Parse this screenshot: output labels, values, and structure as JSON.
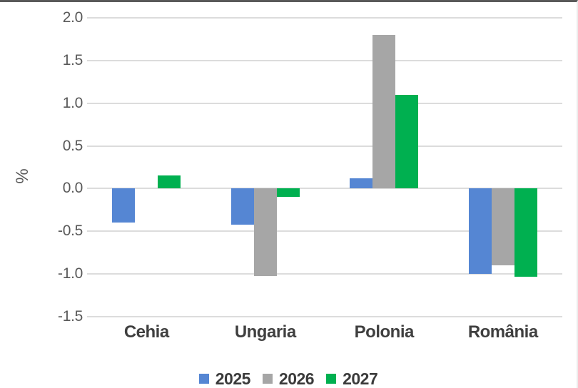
{
  "chart_data": {
    "type": "bar",
    "title": "",
    "xlabel": "",
    "ylabel": "%",
    "categories": [
      "Cehia",
      "Ungaria",
      "Polonia",
      "România"
    ],
    "series": [
      {
        "name": "2025",
        "color": "#5586D3",
        "values": [
          -0.4,
          -0.42,
          0.12,
          -1.0
        ]
      },
      {
        "name": "2026",
        "color": "#A6A6A6",
        "values": [
          0.0,
          -1.02,
          1.8,
          -0.9
        ]
      },
      {
        "name": "2027",
        "color": "#00B050",
        "values": [
          0.15,
          -0.1,
          1.1,
          -1.03
        ]
      }
    ],
    "yticks": [
      2.0,
      1.5,
      1.0,
      0.5,
      0.0,
      -0.5,
      -1.0,
      -1.5
    ],
    "ylim": [
      -1.5,
      2.0
    ],
    "grid": true,
    "legend_position": "bottom",
    "colors": {
      "gridline": "#dcdcdc",
      "axis_text": "#595959",
      "category_text": "#3f3f3f",
      "legend_text": "#3b3b3b",
      "top_border": "#595959",
      "background": "#ffffff"
    }
  }
}
